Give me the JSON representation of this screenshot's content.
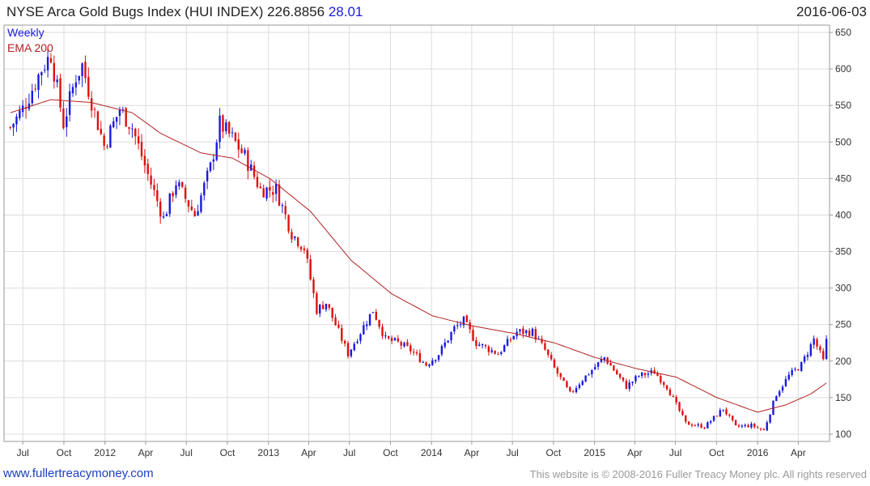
{
  "header": {
    "title": "NYSE Arca Gold Bugs Index (HUI INDEX) 226.8856",
    "change": "28.01",
    "date": "2016-06-03"
  },
  "legend": {
    "weekly": "Weekly",
    "ema": "EMA 200"
  },
  "footer": {
    "url": "www.fullertreacymoney.com",
    "copyright": "This website is © 2008-2016 Fuller Treacy Money plc. All rights reserved"
  },
  "colors": {
    "up": "#1a1adf",
    "down": "#e01010",
    "ema": "#b22222",
    "grid": "#dcdcdc",
    "frame": "#9a9a9a"
  },
  "chart_data": {
    "type": "candlestick",
    "frequency": "weekly",
    "ylim": [
      90,
      660
    ],
    "yticks": [
      100,
      150,
      200,
      250,
      300,
      350,
      400,
      450,
      500,
      550,
      600,
      650
    ],
    "xticks": [
      {
        "label": "Jul",
        "date": "2011-07-01"
      },
      {
        "label": "Oct",
        "date": "2011-10-01"
      },
      {
        "label": "2012",
        "date": "2012-01-01"
      },
      {
        "label": "Apr",
        "date": "2012-04-01"
      },
      {
        "label": "Jul",
        "date": "2012-07-01"
      },
      {
        "label": "Oct",
        "date": "2012-10-01"
      },
      {
        "label": "2013",
        "date": "2013-01-01"
      },
      {
        "label": "Apr",
        "date": "2013-04-01"
      },
      {
        "label": "Jul",
        "date": "2013-07-01"
      },
      {
        "label": "Oct",
        "date": "2013-10-01"
      },
      {
        "label": "2014",
        "date": "2014-01-01"
      },
      {
        "label": "Apr",
        "date": "2014-04-01"
      },
      {
        "label": "Jul",
        "date": "2014-07-01"
      },
      {
        "label": "Oct",
        "date": "2014-10-01"
      },
      {
        "label": "2015",
        "date": "2015-01-01"
      },
      {
        "label": "Apr",
        "date": "2015-04-01"
      },
      {
        "label": "Jul",
        "date": "2015-07-01"
      },
      {
        "label": "Oct",
        "date": "2015-10-01"
      },
      {
        "label": "2016",
        "date": "2016-01-01"
      },
      {
        "label": "Apr",
        "date": "2016-04-01"
      }
    ],
    "price_path": [
      {
        "date": "2011-06-03",
        "value": 520
      },
      {
        "date": "2011-07-01",
        "value": 545
      },
      {
        "date": "2011-08-12",
        "value": 600
      },
      {
        "date": "2011-09-02",
        "value": 620
      },
      {
        "date": "2011-09-30",
        "value": 525
      },
      {
        "date": "2011-10-28",
        "value": 590
      },
      {
        "date": "2011-11-11",
        "value": 605
      },
      {
        "date": "2011-12-09",
        "value": 540
      },
      {
        "date": "2011-12-30",
        "value": 495
      },
      {
        "date": "2012-02-03",
        "value": 545
      },
      {
        "date": "2012-03-02",
        "value": 520
      },
      {
        "date": "2012-04-06",
        "value": 455
      },
      {
        "date": "2012-05-11",
        "value": 395
      },
      {
        "date": "2012-06-08",
        "value": 445
      },
      {
        "date": "2012-07-20",
        "value": 400
      },
      {
        "date": "2012-08-24",
        "value": 465
      },
      {
        "date": "2012-09-14",
        "value": 525
      },
      {
        "date": "2012-10-12",
        "value": 505
      },
      {
        "date": "2012-11-09",
        "value": 480
      },
      {
        "date": "2012-12-14",
        "value": 435
      },
      {
        "date": "2013-01-18",
        "value": 435
      },
      {
        "date": "2013-02-22",
        "value": 375
      },
      {
        "date": "2013-03-22",
        "value": 355
      },
      {
        "date": "2013-04-19",
        "value": 270
      },
      {
        "date": "2013-05-10",
        "value": 280
      },
      {
        "date": "2013-06-28",
        "value": 210
      },
      {
        "date": "2013-08-23",
        "value": 270
      },
      {
        "date": "2013-09-20",
        "value": 230
      },
      {
        "date": "2013-10-18",
        "value": 225
      },
      {
        "date": "2013-11-15",
        "value": 215
      },
      {
        "date": "2013-12-20",
        "value": 195
      },
      {
        "date": "2014-01-17",
        "value": 210
      },
      {
        "date": "2014-02-21",
        "value": 245
      },
      {
        "date": "2014-03-14",
        "value": 255
      },
      {
        "date": "2014-04-11",
        "value": 225
      },
      {
        "date": "2014-05-30",
        "value": 210
      },
      {
        "date": "2014-07-11",
        "value": 240
      },
      {
        "date": "2014-08-15",
        "value": 240
      },
      {
        "date": "2014-09-12",
        "value": 215
      },
      {
        "date": "2014-10-03",
        "value": 190
      },
      {
        "date": "2014-11-07",
        "value": 155
      },
      {
        "date": "2014-12-05",
        "value": 175
      },
      {
        "date": "2015-01-23",
        "value": 205
      },
      {
        "date": "2015-03-13",
        "value": 165
      },
      {
        "date": "2015-04-10",
        "value": 180
      },
      {
        "date": "2015-05-15",
        "value": 185
      },
      {
        "date": "2015-06-12",
        "value": 165
      },
      {
        "date": "2015-07-24",
        "value": 115
      },
      {
        "date": "2015-09-04",
        "value": 110
      },
      {
        "date": "2015-10-16",
        "value": 135
      },
      {
        "date": "2015-11-13",
        "value": 110
      },
      {
        "date": "2015-12-18",
        "value": 112
      },
      {
        "date": "2016-01-15",
        "value": 105
      },
      {
        "date": "2016-02-12",
        "value": 155
      },
      {
        "date": "2016-03-11",
        "value": 180
      },
      {
        "date": "2016-04-08",
        "value": 195
      },
      {
        "date": "2016-05-06",
        "value": 230
      },
      {
        "date": "2016-05-27",
        "value": 200
      },
      {
        "date": "2016-06-03",
        "value": 227
      }
    ],
    "ema_path": [
      {
        "date": "2011-06-03",
        "value": 540
      },
      {
        "date": "2011-09-02",
        "value": 558
      },
      {
        "date": "2011-12-02",
        "value": 554
      },
      {
        "date": "2012-03-02",
        "value": 540
      },
      {
        "date": "2012-05-04",
        "value": 512
      },
      {
        "date": "2012-08-03",
        "value": 485
      },
      {
        "date": "2012-10-12",
        "value": 478
      },
      {
        "date": "2013-01-04",
        "value": 450
      },
      {
        "date": "2013-04-05",
        "value": 405
      },
      {
        "date": "2013-07-05",
        "value": 338
      },
      {
        "date": "2013-10-04",
        "value": 292
      },
      {
        "date": "2014-01-03",
        "value": 262
      },
      {
        "date": "2014-04-04",
        "value": 248
      },
      {
        "date": "2014-07-04",
        "value": 238
      },
      {
        "date": "2014-10-03",
        "value": 225
      },
      {
        "date": "2015-01-02",
        "value": 205
      },
      {
        "date": "2015-04-03",
        "value": 190
      },
      {
        "date": "2015-07-03",
        "value": 178
      },
      {
        "date": "2015-10-02",
        "value": 150
      },
      {
        "date": "2016-01-01",
        "value": 130
      },
      {
        "date": "2016-03-04",
        "value": 140
      },
      {
        "date": "2016-04-29",
        "value": 155
      },
      {
        "date": "2016-06-03",
        "value": 170
      }
    ]
  }
}
